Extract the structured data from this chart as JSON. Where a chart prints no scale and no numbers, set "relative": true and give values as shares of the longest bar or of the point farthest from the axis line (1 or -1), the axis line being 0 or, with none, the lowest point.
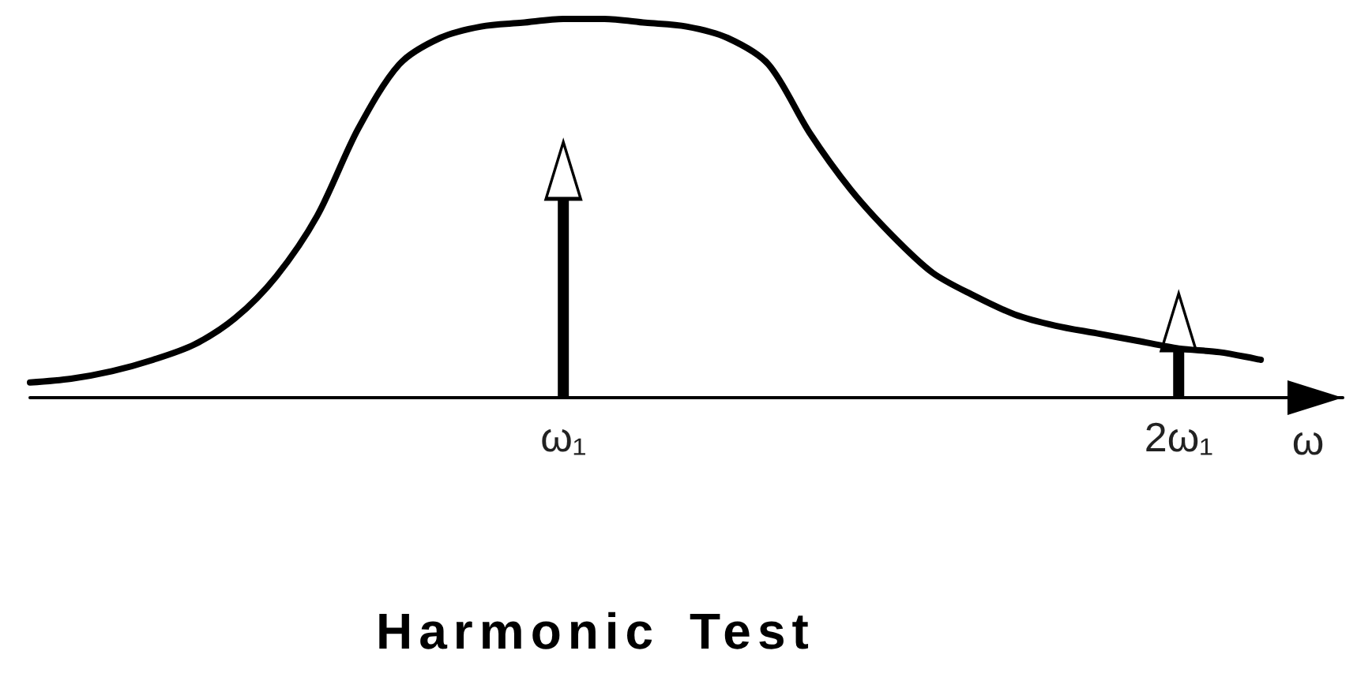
{
  "chart_data": {
    "type": "line",
    "title": "Harmonic Test",
    "xlabel": "ω",
    "relative": true,
    "categories": [
      null,
      null,
      null,
      null,
      null,
      null,
      null,
      null,
      null,
      null,
      null,
      null,
      null,
      "ω₁",
      null,
      null,
      null,
      null,
      null,
      null,
      null,
      null,
      null,
      null,
      null,
      null,
      null,
      null,
      "2ω₁",
      null,
      null,
      null,
      null
    ],
    "series": [
      {
        "color": "#000000",
        "values": [
          0.04,
          0.05,
          0.07,
          0.1,
          0.14,
          0.21,
          0.32,
          0.48,
          0.71,
          0.88,
          0.95,
          0.98,
          0.99,
          1,
          1,
          0.99,
          0.98,
          0.95,
          0.88,
          0.7,
          0.55,
          0.43,
          0.33,
          0.27,
          0.22,
          0.19,
          0.17,
          0.15,
          0.13,
          0.12,
          0.1,
          null,
          null
        ]
      },
      {
        "type": "lollipop",
        "color": "#000000",
        "marker": "triangle",
        "values": [
          null,
          null,
          null,
          null,
          null,
          null,
          null,
          null,
          null,
          null,
          null,
          null,
          null,
          0.6,
          null,
          null,
          null,
          null,
          null,
          null,
          null,
          null,
          null,
          null,
          null,
          null,
          null,
          null,
          0.2,
          null,
          null,
          null,
          null
        ]
      }
    ]
  }
}
